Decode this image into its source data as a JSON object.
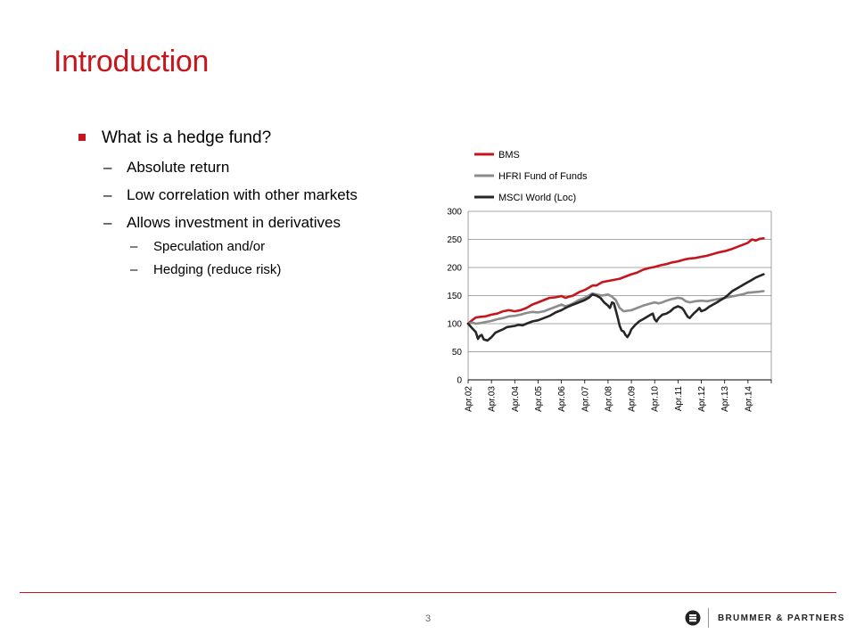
{
  "slide": {
    "title": "Introduction",
    "page_number": "3",
    "bullets": {
      "level1": "What is a hedge fund?",
      "level2": [
        "Absolute return",
        "Low correlation with other markets",
        "Allows investment in derivatives"
      ],
      "level3": [
        "Speculation and/or",
        "Hedging (reduce risk)"
      ],
      "dash": "–"
    },
    "logo_text": "BRUMMER & PARTNERS",
    "accent_color": "#c4161c"
  },
  "chart_data": {
    "type": "line",
    "title": "",
    "xlabel": "",
    "ylabel": "",
    "ylim": [
      0,
      300
    ],
    "yticks": [
      0,
      50,
      100,
      150,
      200,
      250,
      300
    ],
    "x_tick_labels": [
      "Apr.02",
      "Apr.03",
      "Apr.04",
      "Apr.05",
      "Apr.06",
      "Apr.07",
      "Apr.08",
      "Apr.09",
      "Apr.10",
      "Apr.11",
      "Apr.12",
      "Apr.13",
      "Apr.14"
    ],
    "grid": true,
    "legend_position": "top-left",
    "series": [
      {
        "name": "BMS",
        "color": "#c4161c",
        "points": [
          [
            0,
            100
          ],
          [
            0.17,
            106
          ],
          [
            0.33,
            111
          ],
          [
            0.5,
            112
          ],
          [
            0.75,
            113
          ],
          [
            1.0,
            116
          ],
          [
            1.25,
            118
          ],
          [
            1.5,
            122
          ],
          [
            1.75,
            124
          ],
          [
            2.0,
            122
          ],
          [
            2.25,
            124
          ],
          [
            2.5,
            128
          ],
          [
            2.75,
            134
          ],
          [
            3.0,
            138
          ],
          [
            3.25,
            142
          ],
          [
            3.5,
            146
          ],
          [
            3.75,
            147
          ],
          [
            4.0,
            149
          ],
          [
            4.17,
            146
          ],
          [
            4.33,
            148
          ],
          [
            4.5,
            150
          ],
          [
            4.75,
            156
          ],
          [
            5.0,
            160
          ],
          [
            5.17,
            164
          ],
          [
            5.33,
            168
          ],
          [
            5.5,
            168
          ],
          [
            5.75,
            174
          ],
          [
            6.0,
            176
          ],
          [
            6.25,
            178
          ],
          [
            6.5,
            180
          ],
          [
            6.75,
            184
          ],
          [
            7.0,
            188
          ],
          [
            7.25,
            191
          ],
          [
            7.5,
            196
          ],
          [
            7.75,
            199
          ],
          [
            8.0,
            201
          ],
          [
            8.25,
            204
          ],
          [
            8.5,
            206
          ],
          [
            8.75,
            209
          ],
          [
            9.0,
            211
          ],
          [
            9.25,
            214
          ],
          [
            9.5,
            216
          ],
          [
            9.75,
            217
          ],
          [
            10.0,
            219
          ],
          [
            10.25,
            221
          ],
          [
            10.5,
            224
          ],
          [
            10.75,
            227
          ],
          [
            11.0,
            229
          ],
          [
            11.25,
            232
          ],
          [
            11.5,
            236
          ],
          [
            11.75,
            240
          ],
          [
            12.0,
            244
          ],
          [
            12.17,
            250
          ],
          [
            12.33,
            248
          ],
          [
            12.5,
            251
          ],
          [
            12.67,
            252
          ]
        ]
      },
      {
        "name": "HFRI Fund of Funds",
        "color": "#8c8c8c",
        "points": [
          [
            0,
            100
          ],
          [
            0.17,
            102
          ],
          [
            0.33,
            100
          ],
          [
            0.5,
            101
          ],
          [
            0.75,
            103
          ],
          [
            1.0,
            105
          ],
          [
            1.25,
            108
          ],
          [
            1.5,
            110
          ],
          [
            1.75,
            113
          ],
          [
            2.0,
            114
          ],
          [
            2.25,
            116
          ],
          [
            2.5,
            119
          ],
          [
            2.75,
            121
          ],
          [
            3.0,
            120
          ],
          [
            3.25,
            122
          ],
          [
            3.5,
            126
          ],
          [
            3.75,
            130
          ],
          [
            4.0,
            134
          ],
          [
            4.17,
            131
          ],
          [
            4.33,
            133
          ],
          [
            4.5,
            136
          ],
          [
            4.75,
            142
          ],
          [
            5.0,
            146
          ],
          [
            5.17,
            150
          ],
          [
            5.33,
            154
          ],
          [
            5.5,
            152
          ],
          [
            5.75,
            150
          ],
          [
            6.0,
            152
          ],
          [
            6.17,
            148
          ],
          [
            6.33,
            142
          ],
          [
            6.5,
            128
          ],
          [
            6.67,
            122
          ],
          [
            6.83,
            123
          ],
          [
            7.0,
            124
          ],
          [
            7.25,
            128
          ],
          [
            7.5,
            132
          ],
          [
            7.75,
            135
          ],
          [
            8.0,
            138
          ],
          [
            8.17,
            136
          ],
          [
            8.33,
            138
          ],
          [
            8.5,
            141
          ],
          [
            8.75,
            144
          ],
          [
            9.0,
            146
          ],
          [
            9.17,
            145
          ],
          [
            9.33,
            140
          ],
          [
            9.5,
            138
          ],
          [
            9.75,
            140
          ],
          [
            10.0,
            141
          ],
          [
            10.25,
            140
          ],
          [
            10.5,
            142
          ],
          [
            10.75,
            144
          ],
          [
            11.0,
            146
          ],
          [
            11.25,
            148
          ],
          [
            11.5,
            150
          ],
          [
            11.75,
            152
          ],
          [
            12.0,
            155
          ],
          [
            12.25,
            156
          ],
          [
            12.5,
            157
          ],
          [
            12.67,
            158
          ]
        ]
      },
      {
        "name": "MSCI World (Loc)",
        "color": "#262626",
        "points": [
          [
            0,
            100
          ],
          [
            0.17,
            92
          ],
          [
            0.33,
            85
          ],
          [
            0.42,
            73
          ],
          [
            0.5,
            78
          ],
          [
            0.58,
            80
          ],
          [
            0.67,
            72
          ],
          [
            0.83,
            70
          ],
          [
            1.0,
            76
          ],
          [
            1.17,
            84
          ],
          [
            1.33,
            87
          ],
          [
            1.5,
            90
          ],
          [
            1.67,
            94
          ],
          [
            1.83,
            95
          ],
          [
            2.0,
            96
          ],
          [
            2.17,
            98
          ],
          [
            2.33,
            97
          ],
          [
            2.5,
            100
          ],
          [
            2.75,
            104
          ],
          [
            3.0,
            106
          ],
          [
            3.25,
            110
          ],
          [
            3.5,
            114
          ],
          [
            3.75,
            120
          ],
          [
            4.0,
            124
          ],
          [
            4.17,
            128
          ],
          [
            4.33,
            131
          ],
          [
            4.5,
            134
          ],
          [
            4.75,
            138
          ],
          [
            5.0,
            142
          ],
          [
            5.17,
            146
          ],
          [
            5.33,
            152
          ],
          [
            5.5,
            150
          ],
          [
            5.67,
            146
          ],
          [
            5.83,
            138
          ],
          [
            6.0,
            132
          ],
          [
            6.08,
            128
          ],
          [
            6.17,
            138
          ],
          [
            6.25,
            136
          ],
          [
            6.33,
            124
          ],
          [
            6.42,
            110
          ],
          [
            6.5,
            96
          ],
          [
            6.58,
            88
          ],
          [
            6.67,
            86
          ],
          [
            6.75,
            80
          ],
          [
            6.83,
            76
          ],
          [
            6.92,
            82
          ],
          [
            7.0,
            90
          ],
          [
            7.17,
            98
          ],
          [
            7.33,
            104
          ],
          [
            7.5,
            108
          ],
          [
            7.67,
            112
          ],
          [
            7.83,
            116
          ],
          [
            7.92,
            118
          ],
          [
            8.0,
            108
          ],
          [
            8.08,
            104
          ],
          [
            8.17,
            110
          ],
          [
            8.33,
            116
          ],
          [
            8.5,
            118
          ],
          [
            8.67,
            122
          ],
          [
            8.83,
            128
          ],
          [
            9.0,
            131
          ],
          [
            9.17,
            128
          ],
          [
            9.25,
            124
          ],
          [
            9.33,
            118
          ],
          [
            9.42,
            112
          ],
          [
            9.5,
            110
          ],
          [
            9.58,
            114
          ],
          [
            9.67,
            118
          ],
          [
            9.83,
            124
          ],
          [
            9.92,
            128
          ],
          [
            10.0,
            122
          ],
          [
            10.17,
            125
          ],
          [
            10.33,
            130
          ],
          [
            10.5,
            134
          ],
          [
            10.67,
            138
          ],
          [
            10.83,
            142
          ],
          [
            11.0,
            146
          ],
          [
            11.17,
            152
          ],
          [
            11.33,
            158
          ],
          [
            11.5,
            162
          ],
          [
            11.67,
            166
          ],
          [
            11.83,
            170
          ],
          [
            12.0,
            174
          ],
          [
            12.17,
            178
          ],
          [
            12.33,
            182
          ],
          [
            12.5,
            185
          ],
          [
            12.67,
            188
          ]
        ]
      }
    ]
  }
}
